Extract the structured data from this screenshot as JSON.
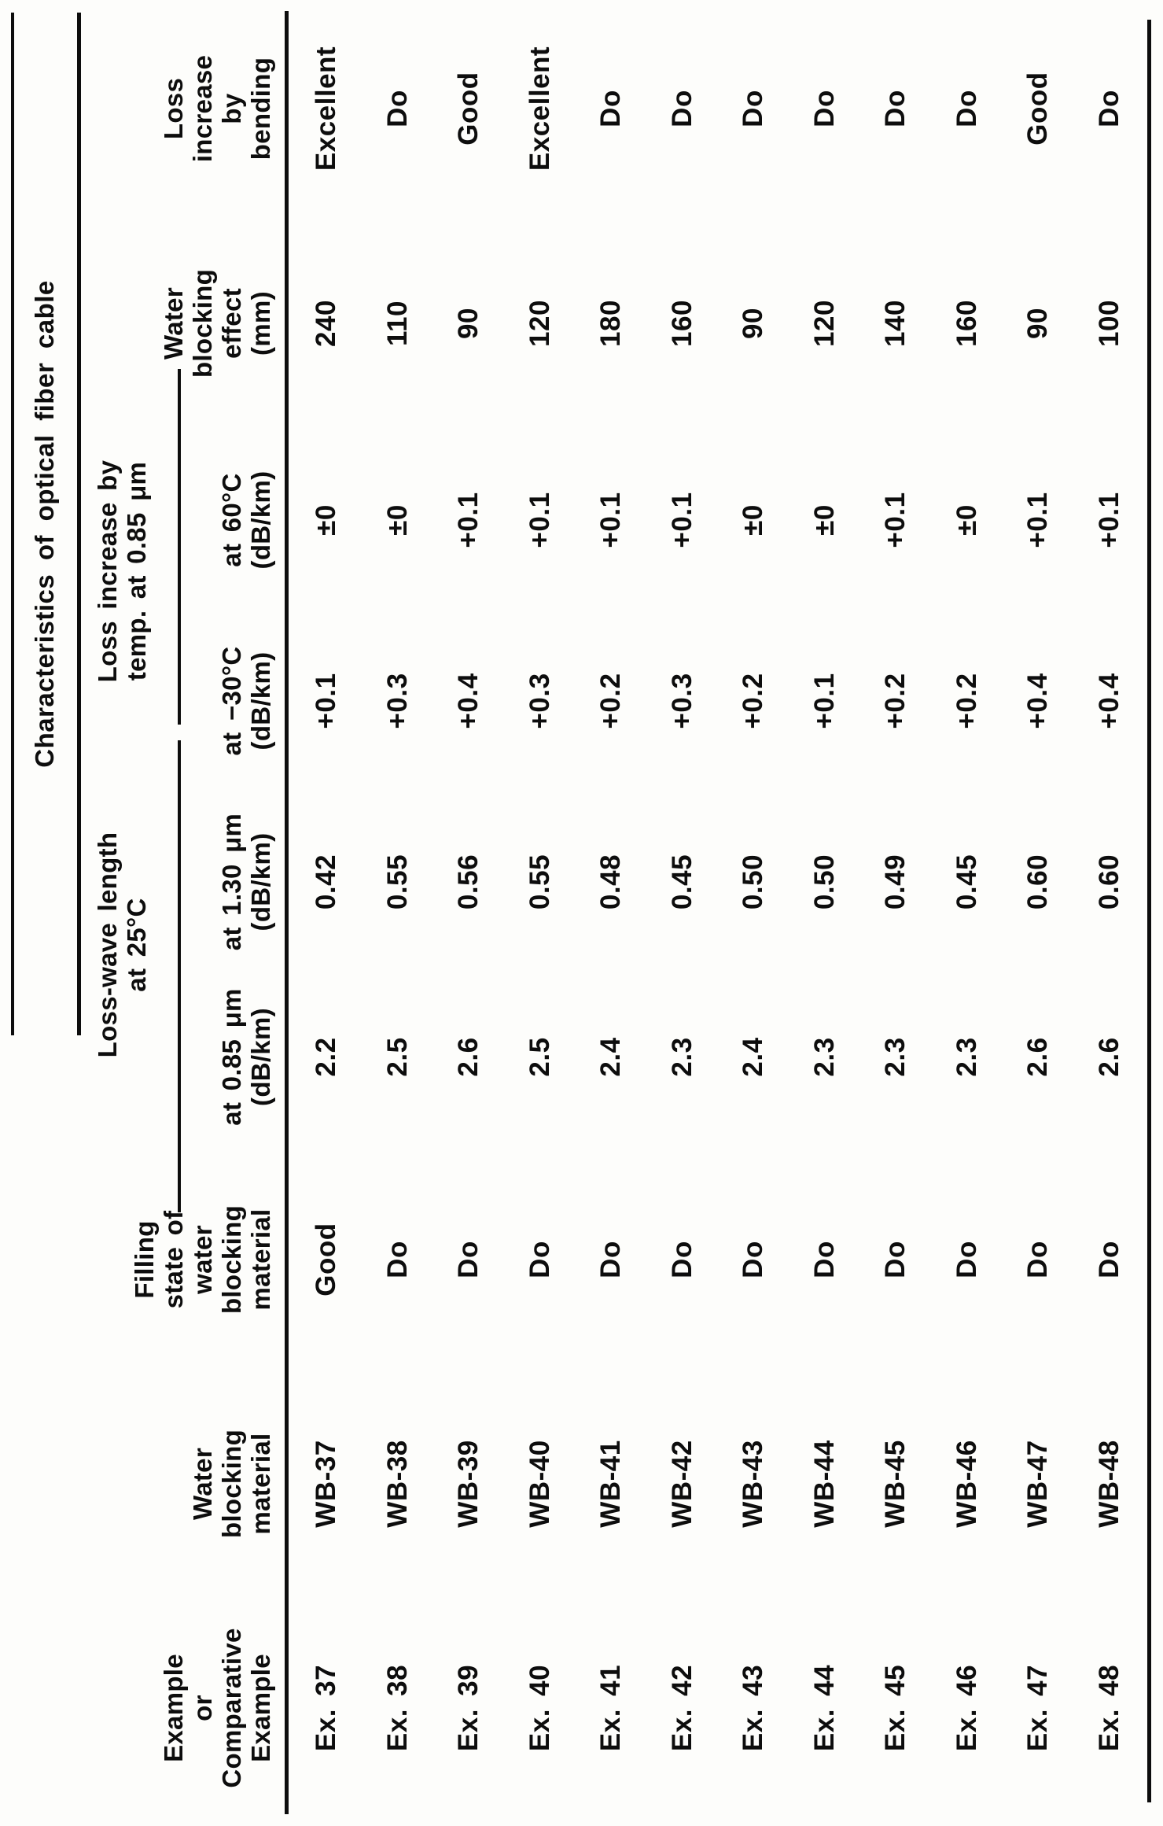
{
  "page": {
    "background": "#fdfdfb",
    "ink": "#0d0d0d"
  },
  "table": {
    "title": "Characteristics of optical fiber cable",
    "groups": [
      {
        "lines": [
          "Loss-wave length",
          "at 25°C"
        ]
      },
      {
        "lines": [
          "Loss increase by",
          "temp. at 0.85 μm"
        ]
      }
    ],
    "columns": [
      {
        "key": "example",
        "header_lines": [
          "Example",
          "or",
          "Comparative",
          "Example"
        ]
      },
      {
        "key": "wb_material",
        "header_lines": [
          "Water",
          "blocking",
          "material"
        ]
      },
      {
        "key": "filling",
        "header_lines": [
          "Filling",
          "state of",
          "water",
          "blocking",
          "material"
        ]
      },
      {
        "key": "loss_085",
        "header_lines": [
          "at 0.85 μm",
          "(dB/km)"
        ]
      },
      {
        "key": "loss_130",
        "header_lines": [
          "at 1.30 μm",
          "(dB/km)"
        ]
      },
      {
        "key": "temp_m30",
        "header_lines": [
          "at −30°C",
          "(dB/km)"
        ]
      },
      {
        "key": "temp_60",
        "header_lines": [
          "at 60°C",
          "(dB/km)"
        ]
      },
      {
        "key": "wb_effect",
        "header_lines": [
          "Water",
          "blocking",
          "effect",
          "(mm)"
        ]
      },
      {
        "key": "bending",
        "header_lines": [
          "Loss",
          "increase",
          "by",
          "bending"
        ]
      }
    ],
    "rows": [
      {
        "example": "Ex. 37",
        "wb_material": "WB-37",
        "filling": "Good",
        "loss_085": "2.2",
        "loss_130": "0.42",
        "temp_m30": "+0.1",
        "temp_60": "±0",
        "wb_effect": "240",
        "bending": "Excellent"
      },
      {
        "example": "Ex. 38",
        "wb_material": "WB-38",
        "filling": "Do",
        "loss_085": "2.5",
        "loss_130": "0.55",
        "temp_m30": "+0.3",
        "temp_60": "±0",
        "wb_effect": "110",
        "bending": "Do"
      },
      {
        "example": "Ex. 39",
        "wb_material": "WB-39",
        "filling": "Do",
        "loss_085": "2.6",
        "loss_130": "0.56",
        "temp_m30": "+0.4",
        "temp_60": "+0.1",
        "wb_effect": "90",
        "bending": "Good"
      },
      {
        "example": "Ex. 40",
        "wb_material": "WB-40",
        "filling": "Do",
        "loss_085": "2.5",
        "loss_130": "0.55",
        "temp_m30": "+0.3",
        "temp_60": "+0.1",
        "wb_effect": "120",
        "bending": "Excellent"
      },
      {
        "example": "Ex. 41",
        "wb_material": "WB-41",
        "filling": "Do",
        "loss_085": "2.4",
        "loss_130": "0.48",
        "temp_m30": "+0.2",
        "temp_60": "+0.1",
        "wb_effect": "180",
        "bending": "Do"
      },
      {
        "example": "Ex. 42",
        "wb_material": "WB-42",
        "filling": "Do",
        "loss_085": "2.3",
        "loss_130": "0.45",
        "temp_m30": "+0.3",
        "temp_60": "+0.1",
        "wb_effect": "160",
        "bending": "Do"
      },
      {
        "example": "Ex. 43",
        "wb_material": "WB-43",
        "filling": "Do",
        "loss_085": "2.4",
        "loss_130": "0.50",
        "temp_m30": "+0.2",
        "temp_60": "±0",
        "wb_effect": "90",
        "bending": "Do"
      },
      {
        "example": "Ex. 44",
        "wb_material": "WB-44",
        "filling": "Do",
        "loss_085": "2.3",
        "loss_130": "0.50",
        "temp_m30": "+0.1",
        "temp_60": "±0",
        "wb_effect": "120",
        "bending": "Do"
      },
      {
        "example": "Ex. 45",
        "wb_material": "WB-45",
        "filling": "Do",
        "loss_085": "2.3",
        "loss_130": "0.49",
        "temp_m30": "+0.2",
        "temp_60": "+0.1",
        "wb_effect": "140",
        "bending": "Do"
      },
      {
        "example": "Ex. 46",
        "wb_material": "WB-46",
        "filling": "Do",
        "loss_085": "2.3",
        "loss_130": "0.45",
        "temp_m30": "+0.2",
        "temp_60": "±0",
        "wb_effect": "160",
        "bending": "Do"
      },
      {
        "example": "Ex. 47",
        "wb_material": "WB-47",
        "filling": "Do",
        "loss_085": "2.6",
        "loss_130": "0.60",
        "temp_m30": "+0.4",
        "temp_60": "+0.1",
        "wb_effect": "90",
        "bending": "Good"
      },
      {
        "example": "Ex. 48",
        "wb_material": "WB-48",
        "filling": "Do",
        "loss_085": "2.6",
        "loss_130": "0.60",
        "temp_m30": "+0.4",
        "temp_60": "+0.1",
        "wb_effect": "100",
        "bending": "Do"
      }
    ]
  }
}
